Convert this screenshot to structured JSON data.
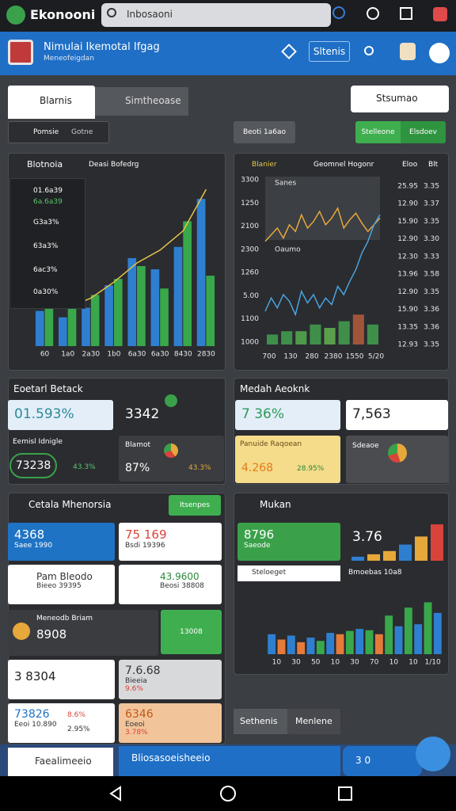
{
  "top_bar": {
    "app_name": "Ekonooni",
    "search": "Inbosaoni"
  },
  "header": {
    "title": "Nimulai Ikemotal Ifgag",
    "subtitle": "Meneofeigdan",
    "button": "Sltenis"
  },
  "tabs": [
    "Blarnis",
    "Simtheoase"
  ],
  "dropdown": "Stsumao",
  "toolbar": {
    "filter": "Pomsie",
    "filter_value": "Gotne",
    "button": "Beoti 1a6ao",
    "actions": [
      "Stelleone",
      "Elsdoev"
    ]
  },
  "overview": {
    "title": "Blotnoia",
    "subtitle": "Deasi Bofedrg",
    "list": [
      "01.6a39",
      "6a.6a39",
      "G3a3%",
      "63a3%",
      "6ac3%",
      "0a30%"
    ],
    "chart": {
      "type": "bar",
      "categories": [
        "60",
        "1a0",
        "2a30",
        "1b0",
        "6a30",
        "6a30",
        "8430",
        "2830"
      ],
      "ylim": [
        0,
        100
      ],
      "series": [
        {
          "color": "#2f7fd0",
          "values": [
            22,
            18,
            24,
            38,
            55,
            48,
            62,
            92
          ]
        },
        {
          "color": "#38a84a",
          "values": [
            30,
            26,
            32,
            42,
            50,
            36,
            78,
            44
          ]
        }
      ],
      "line": {
        "color": "#e8c547",
        "values": [
          28,
          24,
          30,
          40,
          52,
          60,
          72,
          98
        ]
      }
    }
  },
  "market": {
    "title": "Blanier",
    "subtitle": "Geomnel Hogonr",
    "columns": [
      "Eloo",
      "Blt"
    ],
    "y_labels": [
      "3300",
      "1250",
      "2100",
      "2300",
      "1260",
      "5.00",
      "1100",
      "1000"
    ],
    "table": [
      [
        "25.95",
        "3.35"
      ],
      [
        "12.90",
        "3.37"
      ],
      [
        "15.90",
        "3.35"
      ],
      [
        "12.90",
        "3.30"
      ],
      [
        "12.30",
        "3.33"
      ],
      [
        "13.96",
        "3.58"
      ],
      [
        "12.90",
        "3.35"
      ],
      [
        "15.90",
        "3.36"
      ],
      [
        "13.35",
        "3.36"
      ],
      [
        "12.93",
        "3.35"
      ]
    ],
    "legend": [
      "Sanes",
      "Oaumo"
    ],
    "x_labels": [
      "700",
      "130",
      "280",
      "2380",
      "1550",
      "5/20"
    ],
    "chart": {
      "type": "line",
      "ylim": [
        0,
        100
      ],
      "series": [
        {
          "color": "#e6a83a",
          "values": [
            62,
            66,
            70,
            64,
            72,
            68,
            78,
            70,
            74,
            80,
            72,
            76,
            82,
            70,
            75,
            79,
            73,
            68,
            72,
            76
          ]
        },
        {
          "color": "#4aa3df",
          "values": [
            20,
            28,
            22,
            30,
            26,
            18,
            32,
            25,
            30,
            22,
            28,
            24,
            35,
            30,
            38,
            45,
            55,
            62,
            72,
            78
          ]
        }
      ],
      "bars": {
        "colors": [
          "#3f8f4a",
          "#3f8f4a",
          "#4f9a4a",
          "#3f8f4a",
          "#5aa04a",
          "#3f8f4a",
          "#a0553a",
          "#3f8f4a"
        ],
        "values": [
          6,
          8,
          8,
          12,
          10,
          14,
          18,
          12
        ]
      }
    }
  },
  "stats": {
    "title": "Eoetarl Betack",
    "card_1": "01.593%",
    "card_2": "3342",
    "label": "Eemisl Idnigle",
    "value": "73238",
    "change": "43.3%",
    "side_title": "Blamot",
    "side_value": "87%",
    "side_change": "43.3%"
  },
  "media": {
    "title": "Medah Aeoknk",
    "card_1": "7 36%",
    "card_2": "7,563",
    "label": "Panuide Raqoean",
    "value": "4.268",
    "change": "28.95%",
    "side_title": "Sdeaoe"
  },
  "details": {
    "title": "Cetala Mhenorsia",
    "button": "Itsenpes",
    "cards": [
      [
        "4368",
        "Saee 1990"
      ],
      [
        "75 169",
        "Bsdi 19396"
      ],
      [
        "Pam Bleodo",
        "Bieeo 39395"
      ],
      [
        "43.9600",
        "Beosi 38808"
      ],
      [
        "Meneodb Briam",
        "8908"
      ],
      [
        "13008"
      ],
      [
        "3 8304"
      ],
      [
        "7.6.68",
        "Bieeia",
        "9.6%"
      ],
      [
        "73826",
        "Eeoi 10.890",
        "8.6%",
        "2.95%"
      ],
      [
        "6346",
        "Eoeoi",
        "3.78%"
      ]
    ]
  },
  "mukan": {
    "title": "Mukan",
    "card": "8796",
    "card_sub": "Saeode",
    "value": "3.76",
    "strip": "Steloeget",
    "note": "Bmoebas 10a8",
    "mini_chart": {
      "type": "bar",
      "ylim": [
        0,
        50
      ],
      "values": [
        5,
        8,
        12,
        20,
        30,
        45
      ],
      "colors": [
        "#2f7fd0",
        "#e6a83a",
        "#e6a83a",
        "#2f7fd0",
        "#e6a83a",
        "#d9443a"
      ]
    },
    "chart": {
      "type": "bar",
      "categories": [
        "10",
        "30",
        "50",
        "10",
        "30",
        "70",
        "10",
        "10",
        "1/10"
      ],
      "ylim": [
        0,
        100
      ],
      "values": [
        30,
        22,
        28,
        18,
        25,
        20,
        32,
        30,
        35,
        38,
        36,
        30,
        58,
        42,
        70,
        45,
        78,
        62
      ],
      "colors": [
        "#2f7fd0",
        "#e67a3a",
        "#2f7fd0",
        "#e67a3a",
        "#2f7fd0",
        "#38a84a",
        "#2f7fd0",
        "#e67a3a",
        "#38a84a",
        "#2f7fd0",
        "#38a84a",
        "#e67a3a",
        "#38a84a",
        "#2f7fd0",
        "#38a84a",
        "#2f7fd0",
        "#38a84a",
        "#2f7fd0"
      ]
    }
  },
  "bottom_tabs": [
    "Sethenis",
    "Menlene"
  ],
  "bottom_bar": {
    "left": "Faealimeeio",
    "center": "Bliosasoeisheeio",
    "right": "3 0"
  }
}
